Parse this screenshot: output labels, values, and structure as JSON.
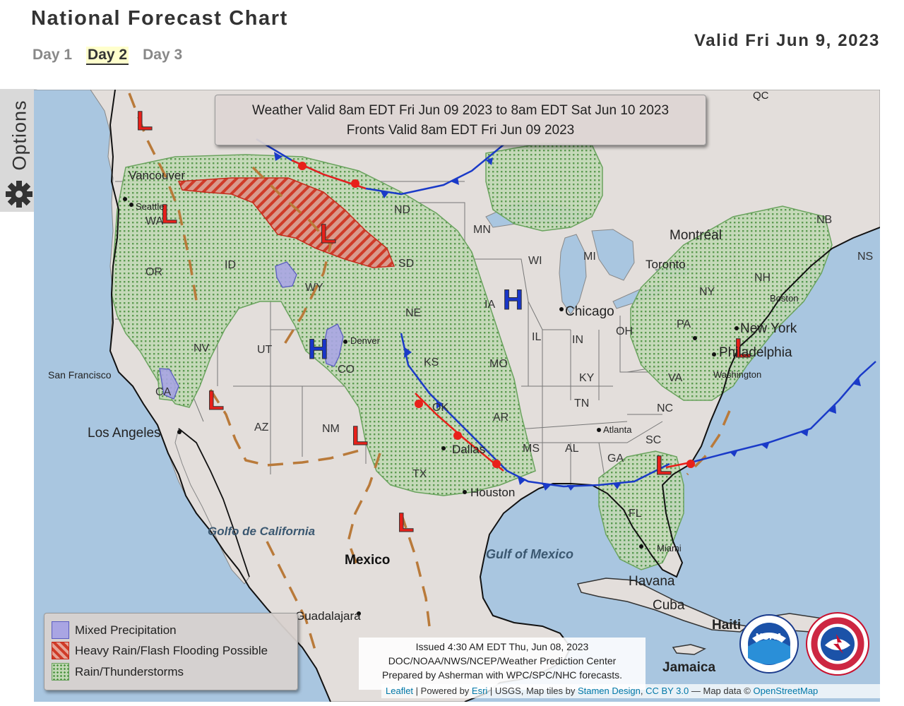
{
  "header": {
    "title": "National Forecast Chart",
    "valid_date": "Valid Fri Jun 9, 2023",
    "tabs": [
      {
        "label": "Day 1",
        "active": false
      },
      {
        "label": "Day 2",
        "active": true
      },
      {
        "label": "Day 3",
        "active": false
      }
    ]
  },
  "options_label": "Options",
  "map": {
    "valid_box": {
      "line1": "Weather Valid 8am EDT Fri Jun 09 2023 to 8am EDT Sat Jun 10 2023",
      "line2": "Fronts Valid 8am EDT Fri Jun 09 2023"
    },
    "pressure_symbols": {
      "low": "L",
      "high": "H",
      "low_color": "#e8201a",
      "high_color": "#1836c8"
    },
    "state_labels": [
      "WA",
      "OR",
      "ID",
      "NV",
      "CA",
      "UT",
      "WY",
      "CO",
      "AZ",
      "NM",
      "ND",
      "SD",
      "NE",
      "KS",
      "OK",
      "TX",
      "MN",
      "IA",
      "MO",
      "AR",
      "MS",
      "AL",
      "WI",
      "IL",
      "IN",
      "KY",
      "TN",
      "GA",
      "SC",
      "NC",
      "VA",
      "OH",
      "PA",
      "NY",
      "NH",
      "NB",
      "NS",
      "FL"
    ],
    "city_labels": [
      "Vancouver",
      "Seattle",
      "San Francisco",
      "Los Angeles",
      "Denver",
      "Dallas",
      "Houston",
      "Chicago",
      "Toronto",
      "Montréal",
      "New York",
      "Philadelphia",
      "Washington",
      "Boston",
      "Atlanta",
      "Miami",
      "Havana",
      "Cuba",
      "Guadalajara",
      "Jamaica",
      "Haiti",
      "QC",
      "MI"
    ],
    "water_labels": [
      "Gulf of Mexico",
      "Golfo de California"
    ],
    "country_labels": [
      "Mexico"
    ]
  },
  "legend": {
    "items": [
      {
        "label": "Mixed Precipitation",
        "color": "#a9a5e3"
      },
      {
        "label": "Heavy Rain/Flash Flooding Possible",
        "color": "#e04a3a"
      },
      {
        "label": "Rain/Thunderstorms",
        "color": "#5f9e53"
      }
    ]
  },
  "issued": {
    "line1": "Issued 4:30 AM EDT Thu, Jun 08, 2023",
    "line2": "DOC/NOAA/NWS/NCEP/Weather Prediction Center",
    "line3": "Prepared by Asherman with WPC/SPC/NHC forecasts."
  },
  "attribution": {
    "leaflet": "Leaflet",
    "powered": " | Powered by ",
    "esri": "Esri",
    "usgs": " | USGS, Map tiles by ",
    "stamen": "Stamen Design",
    "comma": ", ",
    "ccby": "CC BY 3.0",
    "mapdata": " — Map data © ",
    "osm": "OpenStreetMap"
  },
  "logos": {
    "noaa": "NOAA",
    "nws": "NATIONAL WEATHER SERVICE"
  }
}
